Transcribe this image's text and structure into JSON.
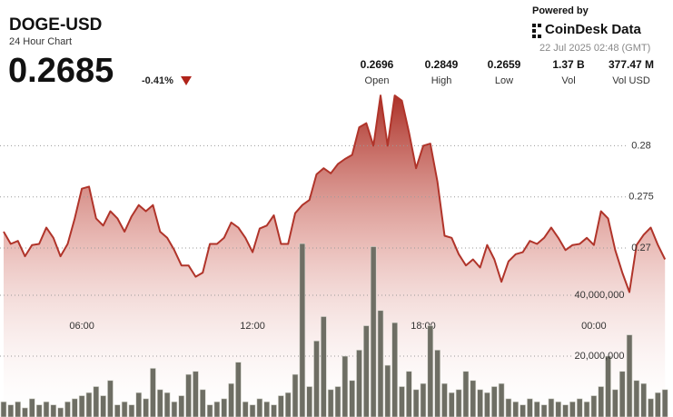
{
  "header": {
    "symbol": "DOGE-USD",
    "subtitle": "24 Hour Chart",
    "price": "0.2685",
    "change": "-0.41%"
  },
  "branding": {
    "powered_by": "Powered by",
    "brand": "CoinDesk Data",
    "timestamp": "22 Jul 2025 02:48 (GMT)"
  },
  "stats": [
    {
      "value": "0.2696",
      "label": "Open"
    },
    {
      "value": "0.2849",
      "label": "High"
    },
    {
      "value": "0.2659",
      "label": "Low"
    },
    {
      "value": "1.37 B",
      "label": "Vol"
    },
    {
      "value": "377.47 M",
      "label": "Vol USD"
    }
  ],
  "chart_data": [
    {
      "type": "area",
      "color": "#b0342a",
      "categories": [
        null,
        null,
        null,
        null,
        null,
        null,
        null,
        null,
        null,
        null,
        null,
        "06:00",
        null,
        null,
        null,
        null,
        null,
        null,
        null,
        null,
        null,
        null,
        null,
        null,
        null,
        null,
        null,
        null,
        null,
        null,
        null,
        null,
        null,
        null,
        null,
        "12:00",
        null,
        null,
        null,
        null,
        null,
        null,
        null,
        null,
        null,
        null,
        null,
        null,
        null,
        null,
        null,
        null,
        null,
        null,
        null,
        null,
        null,
        null,
        null,
        "18:00",
        null,
        null,
        null,
        null,
        null,
        null,
        null,
        null,
        null,
        null,
        null,
        null,
        null,
        null,
        null,
        null,
        null,
        null,
        null,
        null,
        null,
        null,
        null,
        "00:00",
        null,
        null,
        null,
        null,
        null,
        null,
        null,
        null,
        null,
        null
      ],
      "values": [
        0.2716,
        0.2704,
        0.2707,
        0.2692,
        0.2703,
        0.2704,
        0.272,
        0.271,
        0.2692,
        0.2704,
        0.2729,
        0.2758,
        0.276,
        0.2729,
        0.2722,
        0.2736,
        0.2729,
        0.2716,
        0.2731,
        0.2742,
        0.2736,
        0.2742,
        0.2716,
        0.271,
        0.2698,
        0.2683,
        0.2683,
        0.2672,
        0.2676,
        0.2704,
        0.2704,
        0.271,
        0.2725,
        0.272,
        0.271,
        0.2696,
        0.2719,
        0.2722,
        0.2732,
        0.2704,
        0.2704,
        0.2734,
        0.2742,
        0.2747,
        0.2772,
        0.2778,
        0.2773,
        0.2782,
        0.2787,
        0.2791,
        0.2818,
        0.2822,
        0.28,
        0.2849,
        0.28,
        0.2849,
        0.2844,
        0.2813,
        0.2778,
        0.28,
        0.2802,
        0.2765,
        0.2712,
        0.271,
        0.2694,
        0.2683,
        0.2689,
        0.2681,
        0.2703,
        0.2689,
        0.2667,
        0.2687,
        0.2694,
        0.2696,
        0.2707,
        0.2704,
        0.271,
        0.272,
        0.271,
        0.2698,
        0.2703,
        0.2704,
        0.271,
        0.2703,
        0.2736,
        0.2729,
        0.2698,
        0.2676,
        0.2657,
        0.2703,
        0.2713,
        0.272,
        0.2703,
        0.2689
      ],
      "ylim": [
        0.2535,
        0.2858
      ],
      "yticks": [
        0.27,
        0.275,
        0.28
      ],
      "grid": true
    },
    {
      "type": "bar",
      "color": "#6e6e64",
      "values": [
        5000000,
        4000000,
        5000000,
        3000000,
        6000000,
        4000000,
        5000000,
        4000000,
        3000000,
        5000000,
        6000000,
        7000000,
        8000000,
        10000000,
        7000000,
        12000000,
        4000000,
        5000000,
        4000000,
        8000000,
        6000000,
        16000000,
        9000000,
        8000000,
        5000000,
        7000000,
        14000000,
        15000000,
        9000000,
        4000000,
        5000000,
        6000000,
        11000000,
        18000000,
        5000000,
        4000000,
        6000000,
        5000000,
        4000000,
        7000000,
        8000000,
        14000000,
        57000000,
        10000000,
        25000000,
        33000000,
        9000000,
        10000000,
        20000000,
        12000000,
        22000000,
        30000000,
        56000000,
        35000000,
        17000000,
        31000000,
        10000000,
        15000000,
        9000000,
        11000000,
        30000000,
        22000000,
        11000000,
        8000000,
        9000000,
        15000000,
        12000000,
        9000000,
        8000000,
        10000000,
        11000000,
        6000000,
        5000000,
        4000000,
        6000000,
        5000000,
        4000000,
        6000000,
        5000000,
        4000000,
        5000000,
        6000000,
        5000000,
        7000000,
        10000000,
        20000000,
        9000000,
        15000000,
        27000000,
        12000000,
        11000000,
        6000000,
        8000000,
        9000000
      ],
      "ylim": [
        0,
        108700000
      ],
      "yticks": [
        {
          "value": 20000000,
          "label": "20,000,000"
        },
        {
          "value": 40000000,
          "label": "40,000,000"
        }
      ],
      "grid": true
    }
  ]
}
